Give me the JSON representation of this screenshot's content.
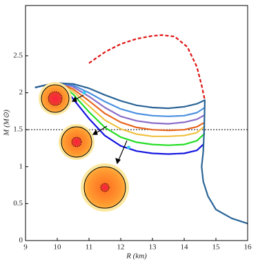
{
  "chart_data": {
    "type": "line",
    "xlabel": "R (km)",
    "ylabel": "M (M⊙)",
    "xlim": [
      9,
      16
    ],
    "ylim": [
      0,
      3.18
    ],
    "xticks": [
      9,
      10,
      11,
      12,
      13,
      14,
      15,
      16
    ],
    "yticks": [
      0,
      0.5,
      1,
      1.5,
      2,
      2.5
    ],
    "reference_line": 1.5,
    "series": [
      {
        "color": "#1414e0",
        "x": [
          9.3,
          9.7,
          10.1,
          10.4,
          11,
          11.5,
          12,
          12.5,
          13,
          13.5,
          14,
          14.4,
          14.6
        ],
        "values": [
          2.07,
          2.11,
          2.12,
          1.97,
          1.65,
          1.42,
          1.28,
          1.21,
          1.18,
          1.17,
          1.18,
          1.22,
          1.3
        ]
      },
      {
        "color": "#22dd22",
        "x": [
          9.3,
          9.7,
          10.1,
          10.5,
          11,
          11.5,
          12,
          12.5,
          13,
          13.5,
          14,
          14.4,
          14.65
        ],
        "values": [
          2.07,
          2.11,
          2.12,
          1.98,
          1.74,
          1.53,
          1.4,
          1.33,
          1.3,
          1.29,
          1.3,
          1.35,
          1.45
        ]
      },
      {
        "color": "#f0c040",
        "x": [
          9.3,
          9.7,
          10.1,
          10.5,
          11,
          11.5,
          12,
          12.5,
          13,
          13.5,
          14,
          14.4,
          14.65
        ],
        "values": [
          2.07,
          2.11,
          2.12,
          2.02,
          1.82,
          1.63,
          1.51,
          1.44,
          1.41,
          1.41,
          1.42,
          1.46,
          1.55
        ]
      },
      {
        "color": "#e8641e",
        "x": [
          9.3,
          9.7,
          10.1,
          10.5,
          11,
          11.5,
          12,
          12.5,
          13,
          13.5,
          14,
          14.4,
          14.65
        ],
        "values": [
          2.07,
          2.11,
          2.12,
          2.05,
          1.89,
          1.72,
          1.6,
          1.53,
          1.5,
          1.49,
          1.5,
          1.54,
          1.6
        ]
      },
      {
        "color": "#8a6cc8",
        "x": [
          9.3,
          9.7,
          10.1,
          10.5,
          11,
          11.5,
          12,
          12.5,
          13,
          13.5,
          14,
          14.4,
          14.65
        ],
        "values": [
          2.07,
          2.11,
          2.13,
          2.08,
          1.95,
          1.8,
          1.68,
          1.62,
          1.59,
          1.58,
          1.6,
          1.64,
          1.7
        ]
      },
      {
        "color": "#4a90e0",
        "x": [
          9.3,
          9.7,
          10.1,
          10.5,
          11,
          11.5,
          12,
          12.5,
          13,
          13.5,
          14,
          14.4,
          14.65
        ],
        "values": [
          2.07,
          2.11,
          2.13,
          2.1,
          2.0,
          1.88,
          1.78,
          1.72,
          1.69,
          1.68,
          1.69,
          1.73,
          1.8
        ]
      },
      {
        "color": "#2a6496",
        "x": [
          9.3,
          9.6,
          10,
          10.5,
          11,
          11.5,
          12,
          12.5,
          13,
          13.5,
          14,
          14.4,
          14.65,
          14.63,
          14.6,
          14.55,
          14.6,
          14.75,
          15,
          15.5,
          16
        ],
        "values": [
          2.07,
          2.1,
          2.13,
          2.12,
          2.06,
          1.97,
          1.89,
          1.83,
          1.8,
          1.79,
          1.81,
          1.85,
          1.9,
          1.5,
          1.2,
          1.0,
          0.8,
          0.6,
          0.42,
          0.3,
          0.23
        ]
      },
      {
        "color": "#e01010",
        "dashed": true,
        "x": [
          11,
          11.5,
          12,
          12.5,
          13,
          13.3,
          13.7,
          14.1,
          14.4,
          14.55,
          14.65
        ],
        "values": [
          2.4,
          2.55,
          2.66,
          2.73,
          2.77,
          2.78,
          2.76,
          2.62,
          2.35,
          2.1,
          1.9
        ]
      }
    ],
    "markers": {
      "color": "#33ccee",
      "x": [
        10.85,
        12.25
      ],
      "values": [
        2.0,
        1.26
      ]
    }
  }
}
